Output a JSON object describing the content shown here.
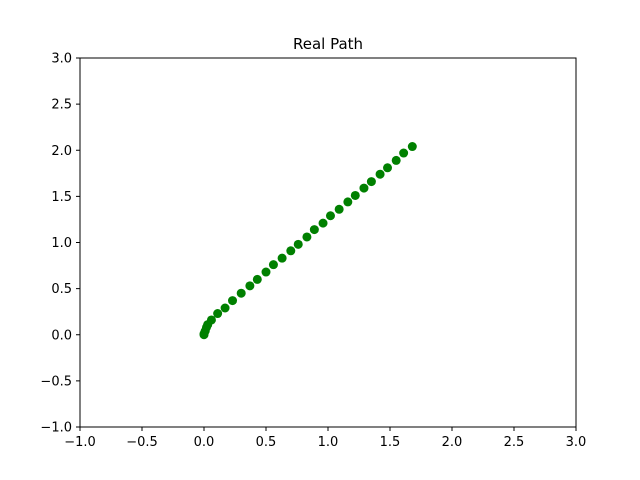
{
  "chart_data": {
    "type": "scatter",
    "title": "Real Path",
    "xlabel": "",
    "ylabel": "",
    "xlim": [
      -1.0,
      3.0
    ],
    "ylim": [
      -1.0,
      3.0
    ],
    "xticks": [
      -1.0,
      -0.5,
      0.0,
      0.5,
      1.0,
      1.5,
      2.0,
      2.5,
      3.0
    ],
    "yticks": [
      -1.0,
      -0.5,
      0.0,
      0.5,
      1.0,
      1.5,
      2.0,
      2.5,
      3.0
    ],
    "xtick_labels": [
      "−1.0",
      "−0.5",
      "0.0",
      "0.5",
      "1.0",
      "1.5",
      "2.0",
      "2.5",
      "3.0"
    ],
    "ytick_labels": [
      "−1.0",
      "−0.5",
      "0.0",
      "0.5",
      "1.0",
      "1.5",
      "2.0",
      "2.5",
      "3.0"
    ],
    "grid": false,
    "marker_color": "#008000",
    "series": [
      {
        "x": [
          0.0,
          0.0,
          0.01,
          0.02,
          0.03,
          0.06,
          0.11,
          0.17,
          0.23,
          0.3,
          0.37,
          0.43,
          0.5,
          0.56,
          0.63,
          0.7,
          0.76,
          0.83,
          0.89,
          0.96,
          1.02,
          1.09,
          1.16,
          1.22,
          1.29,
          1.35,
          1.42,
          1.48,
          1.55,
          1.61,
          1.68
        ],
        "y": [
          0.0,
          0.01,
          0.04,
          0.08,
          0.11,
          0.16,
          0.23,
          0.29,
          0.37,
          0.45,
          0.53,
          0.6,
          0.68,
          0.76,
          0.83,
          0.91,
          0.98,
          1.06,
          1.14,
          1.21,
          1.29,
          1.36,
          1.44,
          1.51,
          1.59,
          1.66,
          1.74,
          1.81,
          1.89,
          1.97,
          2.04
        ]
      }
    ]
  }
}
